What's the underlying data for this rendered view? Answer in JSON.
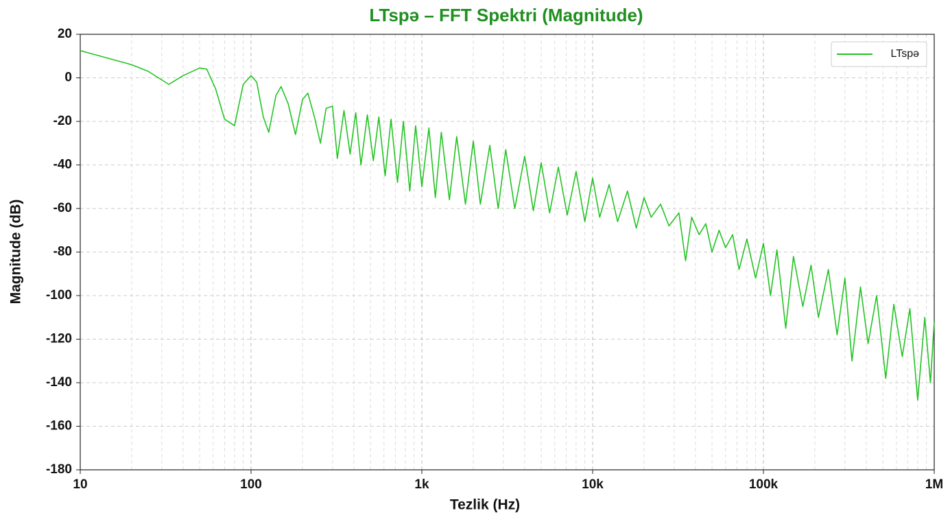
{
  "chart_data": {
    "type": "line",
    "title": "LTspə – FFT Spektri (Magnitude)",
    "xlabel": "Tezlik (Hz)",
    "ylabel": "Magnitude (dB)",
    "xscale": "log",
    "grid": true,
    "legend": "upper right",
    "xlim": [
      10,
      1000000
    ],
    "ylim": [
      -180,
      20
    ],
    "xticks": [
      10,
      100,
      {
        "value": 1000,
        "label": "1k"
      },
      {
        "value": 10000,
        "label": "10k"
      },
      {
        "value": 100000,
        "label": "100k"
      },
      {
        "value": 1000000,
        "label": "1M"
      }
    ],
    "xminor_ticks": [
      20,
      30,
      40,
      50,
      60,
      70,
      80,
      90,
      200,
      300,
      400,
      500,
      600,
      700,
      800,
      900,
      2000,
      3000,
      4000,
      5000,
      6000,
      7000,
      8000,
      9000,
      20000,
      30000,
      40000,
      50000,
      60000,
      70000,
      80000,
      90000,
      200000,
      300000,
      400000,
      500000,
      600000,
      700000,
      800000,
      900000
    ],
    "yticks": [
      -180,
      -160,
      -140,
      -120,
      -100,
      -80,
      -60,
      -40,
      -20,
      0,
      20
    ],
    "series": [
      {
        "name": "LTspə",
        "color": "#22c322",
        "x": [
          10,
          20,
          25,
          33,
          40,
          50,
          55,
          62,
          70,
          80,
          90,
          100,
          108,
          118,
          127,
          140,
          150,
          165,
          182,
          200,
          215,
          235,
          255,
          275,
          300,
          320,
          350,
          380,
          410,
          440,
          480,
          520,
          560,
          610,
          660,
          720,
          780,
          850,
          920,
          1000,
          1100,
          1200,
          1300,
          1450,
          1600,
          1800,
          2000,
          2200,
          2500,
          2800,
          3100,
          3500,
          4000,
          4500,
          5000,
          5600,
          6300,
          7100,
          8000,
          9000,
          10000,
          11000,
          12500,
          14000,
          16000,
          18000,
          20000,
          22000,
          25000,
          28000,
          32000,
          35000,
          38000,
          42000,
          46000,
          50000,
          55000,
          60000,
          66000,
          72000,
          80000,
          90000,
          100000,
          110000,
          120000,
          135000,
          150000,
          170000,
          190000,
          210000,
          240000,
          270000,
          300000,
          330000,
          370000,
          410000,
          460000,
          520000,
          580000,
          650000,
          720000,
          800000,
          880000,
          950000,
          1000000
        ],
        "values": [
          12.5,
          6,
          3,
          -3,
          1,
          4.5,
          4,
          -5,
          -19,
          -22,
          -3,
          1,
          -2,
          -18,
          -25,
          -8,
          -4,
          -12,
          -26,
          -10,
          -7,
          -18,
          -30,
          -14,
          -13,
          -37,
          -15,
          -35,
          -16,
          -40,
          -17,
          -38,
          -18,
          -45,
          -19,
          -48,
          -20,
          -52,
          -22,
          -50,
          -23,
          -55,
          -25,
          -56,
          -27,
          -58,
          -29,
          -58,
          -31,
          -60,
          -33,
          -60,
          -36,
          -61,
          -39,
          -62,
          -41,
          -63,
          -43,
          -66,
          -46,
          -64,
          -49,
          -66,
          -52,
          -69,
          -55,
          -64,
          -58,
          -68,
          -62,
          -84,
          -64,
          -72,
          -67,
          -80,
          -70,
          -78,
          -72,
          -88,
          -74,
          -92,
          -76,
          -100,
          -79,
          -115,
          -82,
          -105,
          -86,
          -110,
          -88,
          -118,
          -92,
          -130,
          -96,
          -122,
          -100,
          -138,
          -104,
          -128,
          -106,
          -148,
          -110,
          -140,
          -112
        ]
      }
    ]
  }
}
